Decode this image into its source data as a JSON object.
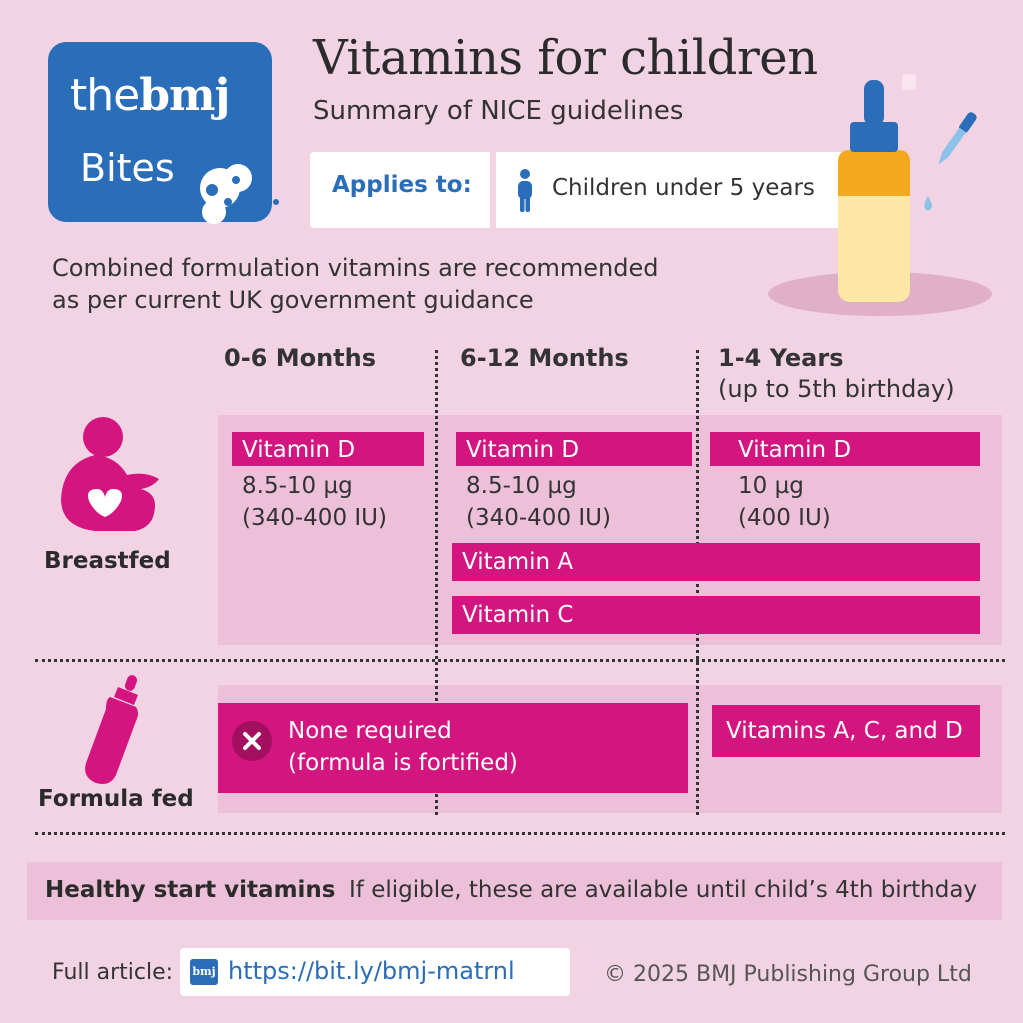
{
  "logo": {
    "the": "the",
    "bmj": "bmj",
    "bites": "Bites"
  },
  "header": {
    "title": "Vitamins for children",
    "subtitle": "Summary of NICE guidelines"
  },
  "applies": {
    "label": "Applies to:",
    "value": "Children under 5 years",
    "icon": "person-icon"
  },
  "intro": {
    "line1": "Combined formulation vitamins are recommended",
    "line2": "as per current UK government guidance"
  },
  "columns": [
    {
      "title": "0-6 Months",
      "sub": ""
    },
    {
      "title": "6-12 Months",
      "sub": ""
    },
    {
      "title": "1-4 Years",
      "sub": "(up to 5th birthday)"
    }
  ],
  "breastfed": {
    "label": "Breastfed",
    "icon": "breastfeeding-icon",
    "vitd": [
      {
        "name": "Vitamin D",
        "dose": "8.5-10 µg",
        "iu": "(340-400 IU)"
      },
      {
        "name": "Vitamin D",
        "dose": "8.5-10 µg",
        "iu": "(340-400 IU)"
      },
      {
        "name": "Vitamin D",
        "dose": "10 µg",
        "iu": "(400 IU)"
      }
    ],
    "vita": "Vitamin A",
    "vitc": "Vitamin C"
  },
  "formula": {
    "label": "Formula fed",
    "icon": "baby-bottle-icon",
    "none_line1": "None required",
    "none_line2": "(formula is fortified)",
    "acd": "Vitamins A, C, and D"
  },
  "healthy_start": {
    "label": "Healthy start vitamins",
    "text": "If eligible, these are available until child’s 4th birthday"
  },
  "footer": {
    "label": "Full article:",
    "link": "https://bit.ly/bmj-matrnl",
    "icon_text": "bmj",
    "copyright": "© 2025 BMJ Publishing Group Ltd"
  },
  "colors": {
    "magenta": "#d4157f",
    "blue": "#2a6db8",
    "background": "#f2d3e4",
    "panel": "#ecc0d8"
  }
}
